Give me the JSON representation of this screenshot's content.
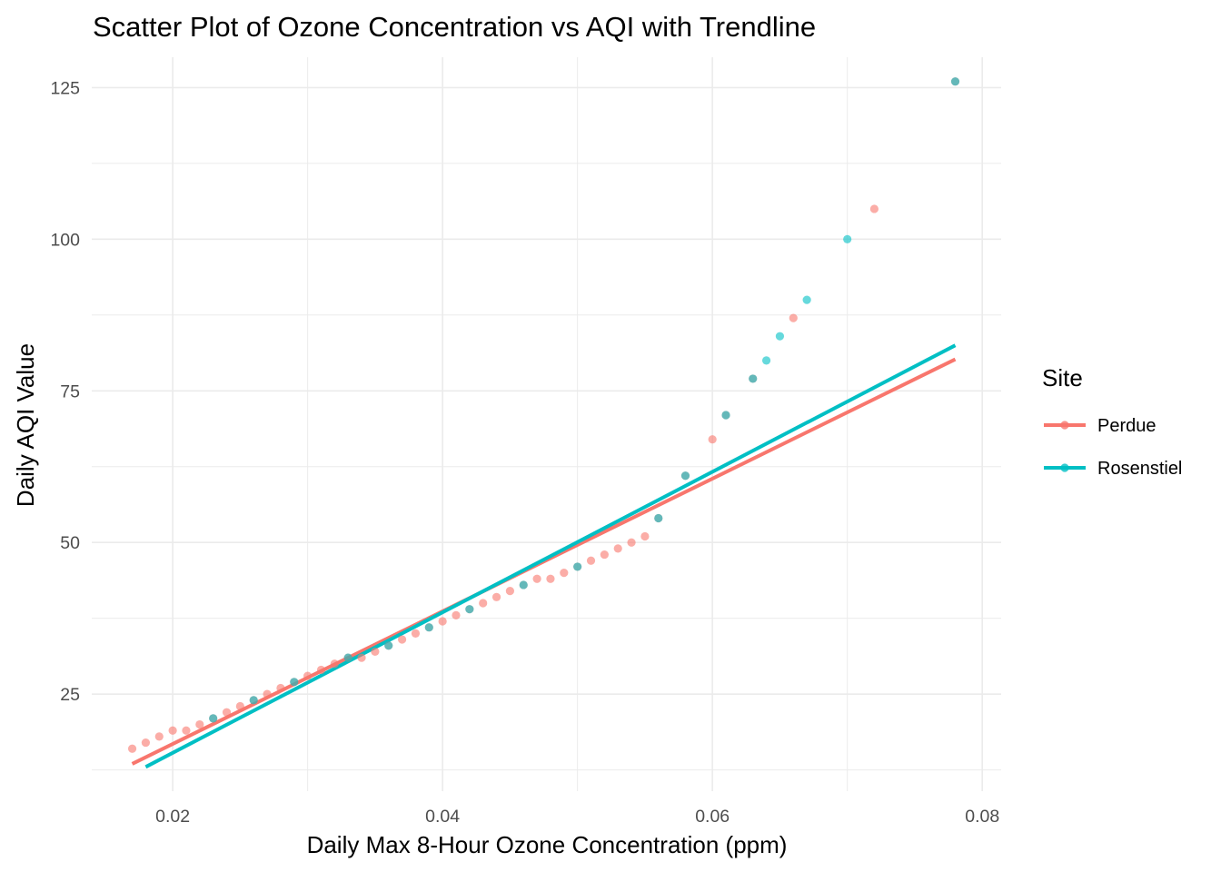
{
  "chart_data": {
    "type": "scatter",
    "title": "Scatter Plot of Ozone Concentration vs AQI with Trendline",
    "xlabel": "Daily Max 8-Hour Ozone Concentration (ppm)",
    "ylabel": "Daily AQI Value",
    "xlim": [
      0.014,
      0.0814
    ],
    "ylim": [
      9,
      130
    ],
    "x_ticks": [
      0.02,
      0.04,
      0.06,
      0.08
    ],
    "x_tick_labels": [
      "0.02",
      "0.04",
      "0.06",
      "0.08"
    ],
    "y_ticks": [
      25,
      50,
      75,
      100,
      125
    ],
    "y_tick_labels": [
      "25",
      "50",
      "75",
      "100",
      "125"
    ],
    "grid": true,
    "legend": {
      "title": "Site",
      "position": "right",
      "entries": [
        "Perdue",
        "Rosenstiel"
      ]
    },
    "colors": {
      "Perdue": "#F8766D",
      "Rosenstiel": "#00BFC4"
    },
    "point_opacity": 0.6,
    "series": [
      {
        "name": "Perdue",
        "points": [
          [
            0.017,
            16
          ],
          [
            0.018,
            17
          ],
          [
            0.019,
            18
          ],
          [
            0.02,
            19
          ],
          [
            0.021,
            19
          ],
          [
            0.022,
            20
          ],
          [
            0.023,
            21
          ],
          [
            0.024,
            22
          ],
          [
            0.025,
            23
          ],
          [
            0.026,
            24
          ],
          [
            0.027,
            25
          ],
          [
            0.028,
            26
          ],
          [
            0.029,
            27
          ],
          [
            0.03,
            28
          ],
          [
            0.031,
            29
          ],
          [
            0.032,
            30
          ],
          [
            0.033,
            31
          ],
          [
            0.034,
            31
          ],
          [
            0.035,
            32
          ],
          [
            0.036,
            33
          ],
          [
            0.037,
            34
          ],
          [
            0.038,
            35
          ],
          [
            0.039,
            36
          ],
          [
            0.04,
            37
          ],
          [
            0.041,
            38
          ],
          [
            0.042,
            39
          ],
          [
            0.043,
            40
          ],
          [
            0.044,
            41
          ],
          [
            0.045,
            42
          ],
          [
            0.046,
            43
          ],
          [
            0.047,
            44
          ],
          [
            0.048,
            44
          ],
          [
            0.049,
            45
          ],
          [
            0.05,
            46
          ],
          [
            0.051,
            47
          ],
          [
            0.052,
            48
          ],
          [
            0.053,
            49
          ],
          [
            0.054,
            50
          ],
          [
            0.055,
            51
          ],
          [
            0.056,
            54
          ],
          [
            0.058,
            61
          ],
          [
            0.06,
            67
          ],
          [
            0.061,
            71
          ],
          [
            0.063,
            77
          ],
          [
            0.066,
            87
          ],
          [
            0.072,
            105
          ],
          [
            0.078,
            126
          ]
        ],
        "trendline": {
          "x": [
            0.017,
            0.078
          ],
          "y": [
            13.5,
            80.2
          ]
        }
      },
      {
        "name": "Rosenstiel",
        "points": [
          [
            0.023,
            21
          ],
          [
            0.026,
            24
          ],
          [
            0.029,
            27
          ],
          [
            0.033,
            31
          ],
          [
            0.036,
            33
          ],
          [
            0.039,
            36
          ],
          [
            0.042,
            39
          ],
          [
            0.046,
            43
          ],
          [
            0.05,
            46
          ],
          [
            0.056,
            54
          ],
          [
            0.058,
            61
          ],
          [
            0.061,
            71
          ],
          [
            0.063,
            77
          ],
          [
            0.064,
            80
          ],
          [
            0.065,
            84
          ],
          [
            0.067,
            90
          ],
          [
            0.07,
            100
          ],
          [
            0.078,
            126
          ]
        ],
        "trendline": {
          "x": [
            0.018,
            0.078
          ],
          "y": [
            13.0,
            82.5
          ]
        }
      }
    ]
  }
}
